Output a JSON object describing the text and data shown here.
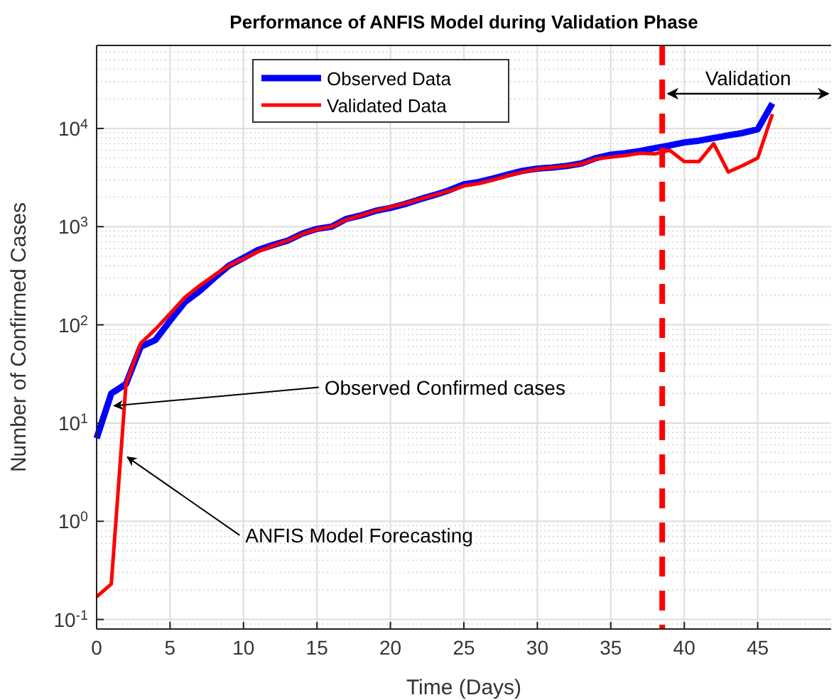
{
  "chart_data": {
    "type": "line",
    "title": "Performance of ANFIS Model during Validation Phase",
    "xlabel": "Time (Days)",
    "ylabel": "Number of Confirmed Cases",
    "x": [
      0,
      1,
      2,
      3,
      4,
      5,
      6,
      7,
      8,
      9,
      10,
      11,
      12,
      13,
      14,
      15,
      16,
      17,
      18,
      19,
      20,
      21,
      22,
      23,
      24,
      25,
      26,
      27,
      28,
      29,
      30,
      31,
      32,
      33,
      34,
      35,
      36,
      37,
      38,
      39,
      40,
      41,
      42,
      43,
      44,
      45,
      46
    ],
    "series": [
      {
        "name": "Observed Data",
        "color": "#0000ff",
        "values": [
          7,
          20,
          25,
          60,
          70,
          110,
          170,
          220,
          300,
          400,
          480,
          580,
          650,
          720,
          850,
          950,
          1000,
          1200,
          1300,
          1450,
          1550,
          1700,
          1900,
          2100,
          2350,
          2700,
          2850,
          3100,
          3400,
          3700,
          3900,
          4000,
          4150,
          4400,
          5000,
          5400,
          5600,
          5900,
          6300,
          6700,
          7200,
          7500,
          8000,
          8500,
          9000,
          9800,
          18000
        ]
      },
      {
        "name": "Validated Data",
        "color": "#ff0000",
        "values": [
          0.17,
          0.23,
          25,
          65,
          90,
          130,
          190,
          250,
          320,
          400,
          470,
          560,
          640,
          720,
          840,
          940,
          1000,
          1180,
          1300,
          1450,
          1580,
          1720,
          1900,
          2100,
          2300,
          2600,
          2750,
          3000,
          3300,
          3600,
          3850,
          4000,
          4150,
          4350,
          4900,
          5100,
          5300,
          5600,
          5500,
          6000,
          4600,
          4600,
          7000,
          3600,
          4200,
          5000,
          14000
        ]
      }
    ],
    "log": "y",
    "xlim": [
      0,
      50
    ],
    "xticks": [
      0,
      5,
      10,
      15,
      20,
      25,
      30,
      35,
      40,
      45
    ],
    "ylim": [
      0.08,
      70000
    ],
    "yticks": [
      {
        "value": 0.1,
        "label": "10$^{-1}$"
      },
      {
        "value": 1,
        "label": "10$^{0}$"
      },
      {
        "value": 10,
        "label": "10$^{1}$"
      },
      {
        "value": 100,
        "label": "10$^{2}$"
      },
      {
        "value": 1000,
        "label": "10$^{3}$"
      },
      {
        "value": 10000,
        "label": "10$^{4}$"
      }
    ],
    "grid": true,
    "legend": "top left",
    "ref_lines": [
      {
        "axis": "x",
        "value": 38.5,
        "color": "#ff0000",
        "line_style": "dashed"
      }
    ],
    "annotations": [
      {
        "text": "Observed Confirmed cases",
        "x": 1,
        "y": 15
      },
      {
        "text": "ANFIS Model Forecasting",
        "x": 1.9,
        "y": 4.5
      },
      "Validation"
    ]
  }
}
